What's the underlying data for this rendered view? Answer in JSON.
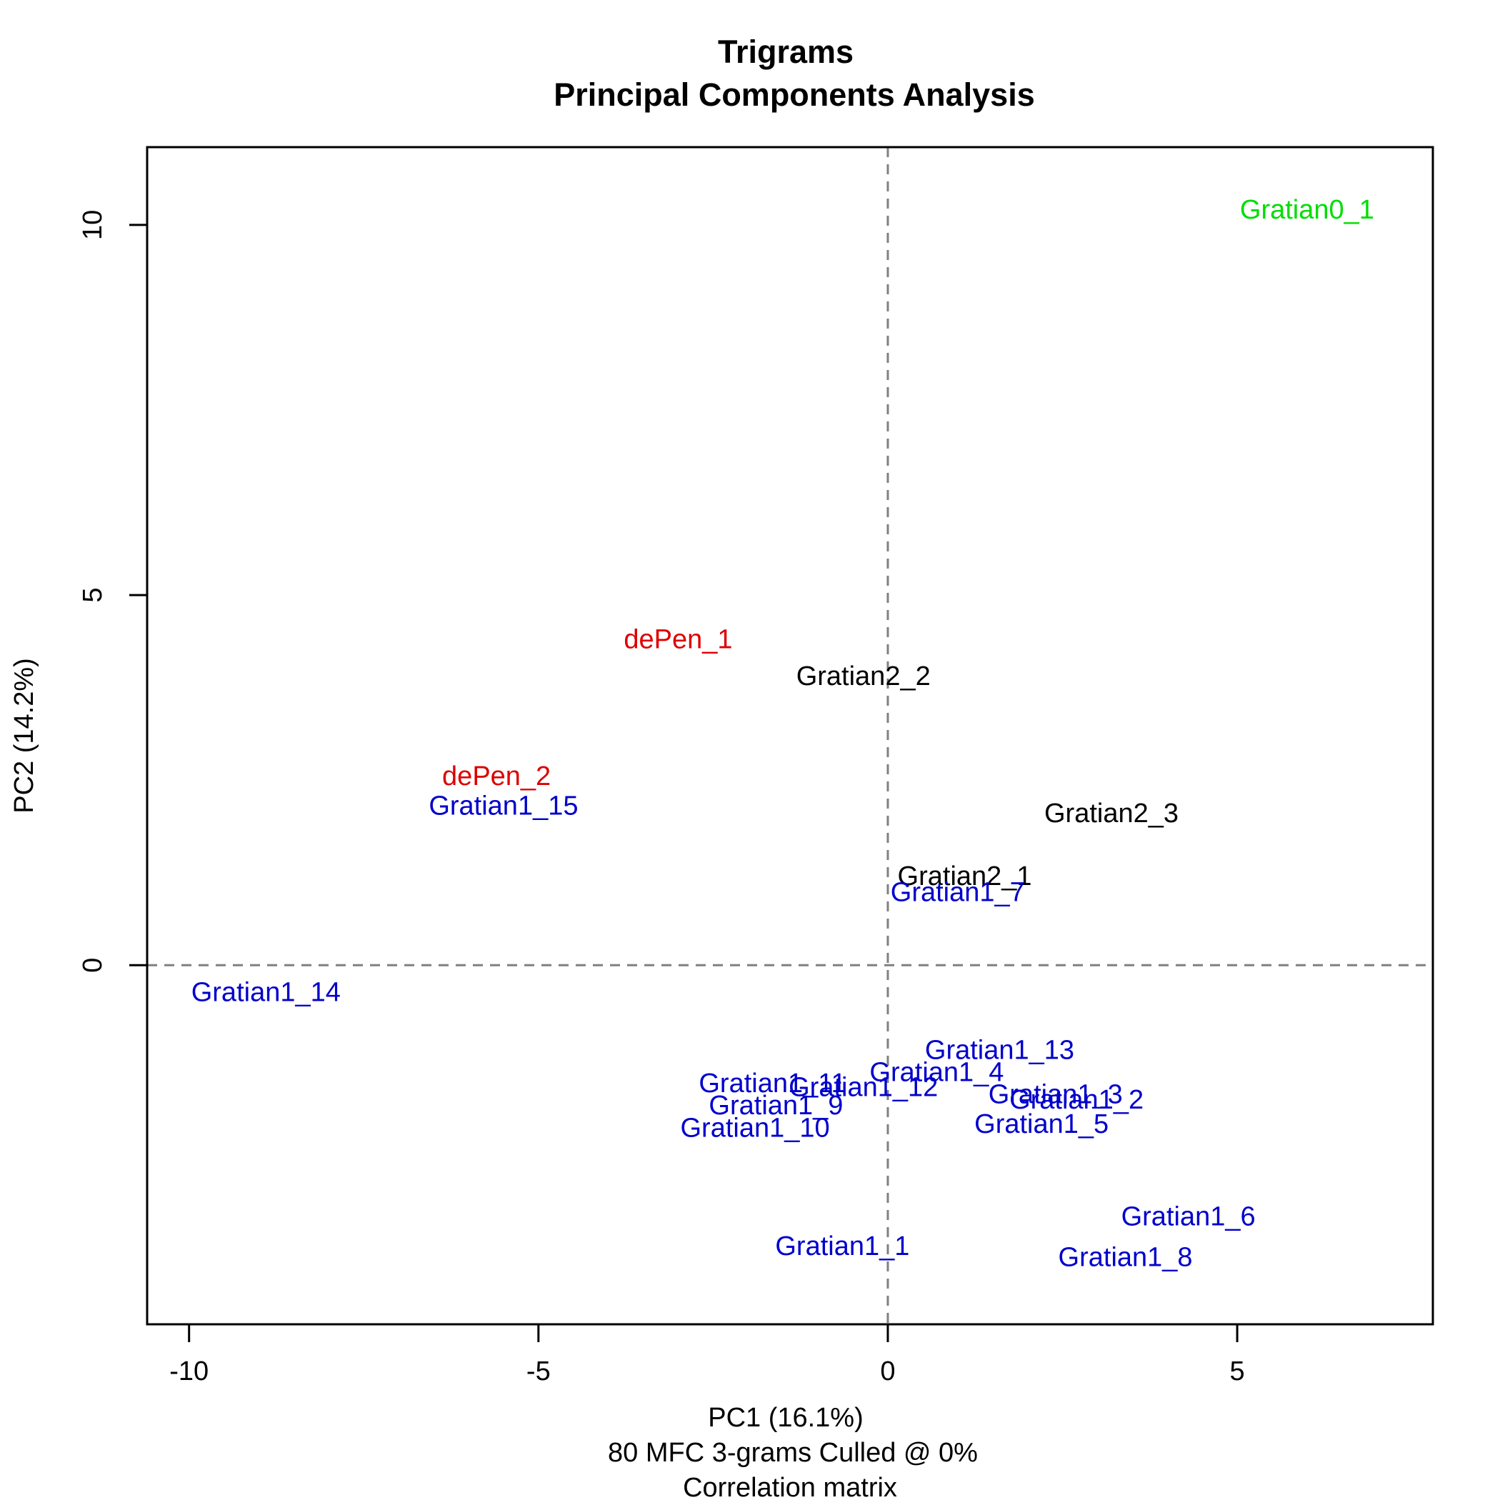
{
  "chart_data": {
    "type": "scatter",
    "title": "Trigrams",
    "subtitle": "Principal Components Analysis",
    "xlabel": "PC1 (16.1%)",
    "ylabel": "PC2 (14.2%)",
    "caption_lines": [
      "80 MFC 3-grams Culled @ 0%",
      "Correlation matrix"
    ],
    "xlim": [
      -10.6,
      7.8
    ],
    "ylim": [
      -4.85,
      11.05
    ],
    "x_ticks": [
      -10,
      -5,
      0,
      5
    ],
    "y_ticks": [
      0,
      5,
      10
    ],
    "reference_lines": {
      "x": 0,
      "y": 0,
      "style": "dashed"
    },
    "grid": false,
    "colors": {
      "group0": "#00dd00",
      "group1": "#0000cc",
      "group2": "#000000",
      "depen": "#dd0000",
      "reflines": "#808080"
    },
    "points": [
      {
        "label": "Gratian0_1",
        "x": 6.0,
        "y": 10.2,
        "group": "group0"
      },
      {
        "label": "dePen_1",
        "x": -3.0,
        "y": 4.4,
        "group": "depen"
      },
      {
        "label": "Gratian2_2",
        "x": -0.35,
        "y": 3.9,
        "group": "group2"
      },
      {
        "label": "dePen_2",
        "x": -5.6,
        "y": 2.55,
        "group": "depen"
      },
      {
        "label": "Gratian1_15",
        "x": -5.5,
        "y": 2.15,
        "group": "group1"
      },
      {
        "label": "Gratian2_3",
        "x": 3.2,
        "y": 2.05,
        "group": "group2"
      },
      {
        "label": "Gratian2_1",
        "x": 1.1,
        "y": 1.2,
        "group": "group2"
      },
      {
        "label": "Gratian1_7",
        "x": 1.0,
        "y": 0.98,
        "group": "group1"
      },
      {
        "label": "Gratian1_14",
        "x": -8.9,
        "y": -0.37,
        "group": "group1"
      },
      {
        "label": "Gratian1_13",
        "x": 1.6,
        "y": -1.15,
        "group": "group1"
      },
      {
        "label": "Gratian1_4",
        "x": 0.7,
        "y": -1.45,
        "group": "group1"
      },
      {
        "label": "Gratian1_11",
        "x": -1.65,
        "y": -1.6,
        "group": "group1"
      },
      {
        "label": "Gratian1_12",
        "x": -0.35,
        "y": -1.65,
        "group": "group1"
      },
      {
        "label": "Gratian1_3",
        "x": 2.4,
        "y": -1.75,
        "group": "group1"
      },
      {
        "label": "Gratian1_2",
        "x": 2.7,
        "y": -1.82,
        "group": "group1"
      },
      {
        "label": "Gratian1_9",
        "x": -1.6,
        "y": -1.9,
        "group": "group1"
      },
      {
        "label": "Gratian1_10",
        "x": -1.9,
        "y": -2.2,
        "group": "group1"
      },
      {
        "label": "Gratian1_5",
        "x": 2.2,
        "y": -2.15,
        "group": "group1"
      },
      {
        "label": "Gratian1_6",
        "x": 4.3,
        "y": -3.4,
        "group": "group1"
      },
      {
        "label": "Gratian1_1",
        "x": -0.65,
        "y": -3.8,
        "group": "group1"
      },
      {
        "label": "Gratian1_8",
        "x": 3.4,
        "y": -3.95,
        "group": "group1"
      }
    ]
  }
}
